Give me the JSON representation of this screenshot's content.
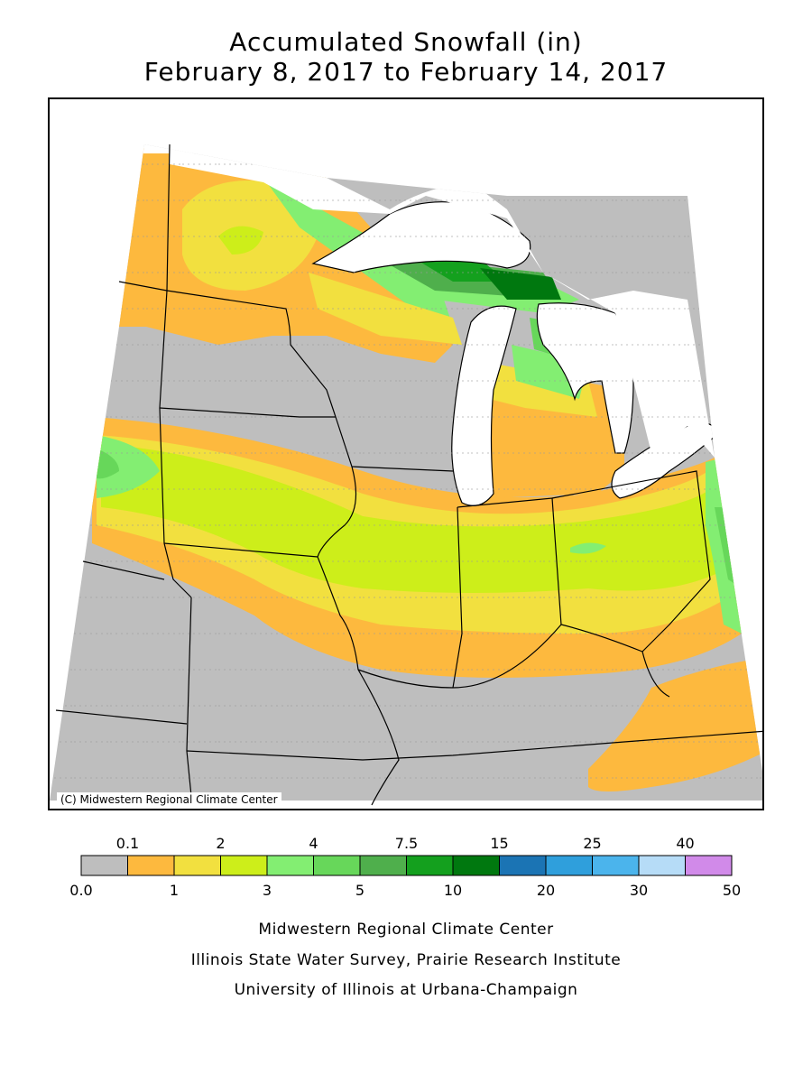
{
  "title_line1": "Accumulated Snowfall (in)",
  "title_line2": "February 8, 2017 to February 14, 2017",
  "copyright": "(C) Midwestern Regional Climate Center",
  "legend": {
    "top_labels": [
      "0.1",
      "2",
      "4",
      "7.5",
      "15",
      "25",
      "40"
    ],
    "bottom_labels": [
      "0.0",
      "1",
      "3",
      "5",
      "10",
      "20",
      "30",
      "50"
    ],
    "colors": [
      "#bebebe",
      "#fdb93e",
      "#f2e03f",
      "#cdee1a",
      "#83ee72",
      "#67d75a",
      "#4faf4c",
      "#14a01e",
      "#00780f",
      "#1b74b4",
      "#2f9fdc",
      "#4bb4ec",
      "#b6dcf7",
      "#d18ae9"
    ]
  },
  "footer_line1": "Midwestern Regional Climate Center",
  "footer_line2": "Illinois State Water Survey, Prairie Research Institute",
  "footer_line3": "University of Illinois at Urbana-Champaign"
}
